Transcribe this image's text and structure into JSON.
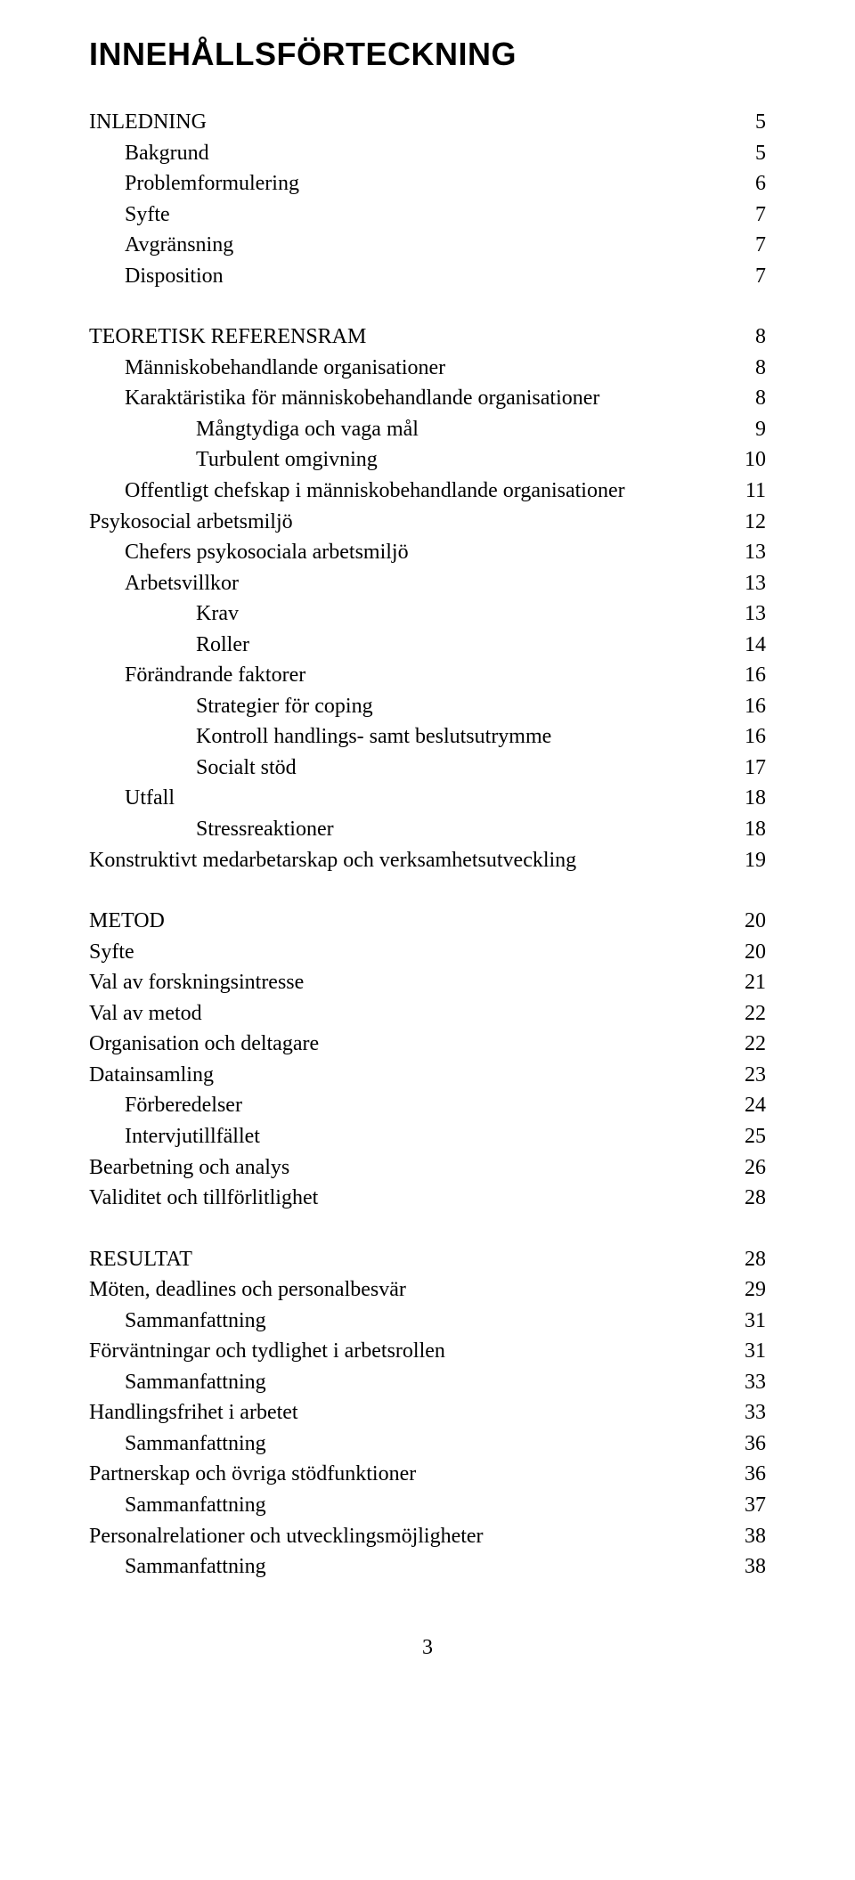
{
  "title": "INNEHÅLLSFÖRTECKNING",
  "footer_page": "3",
  "sections": [
    {
      "entries": [
        {
          "label": "INLEDNING",
          "page": "5",
          "indent": 0
        },
        {
          "label": "Bakgrund",
          "page": "5",
          "indent": 1
        },
        {
          "label": "Problemformulering",
          "page": "6",
          "indent": 1
        },
        {
          "label": "Syfte",
          "page": "7",
          "indent": 1
        },
        {
          "label": "Avgränsning",
          "page": "7",
          "indent": 1
        },
        {
          "label": "Disposition",
          "page": "7",
          "indent": 1
        }
      ]
    },
    {
      "entries": [
        {
          "label": "TEORETISK REFERENSRAM",
          "page": "8",
          "indent": 0
        },
        {
          "label": "Människobehandlande organisationer",
          "page": "8",
          "indent": 1
        },
        {
          "label": "Karaktäristika för människobehandlande organisationer",
          "page": "8",
          "indent": 1
        },
        {
          "label": "Mångtydiga och vaga mål",
          "page": "9",
          "indent": 2
        },
        {
          "label": "Turbulent omgivning",
          "page": "10",
          "indent": 2
        },
        {
          "label": "Offentligt chefskap i människobehandlande organisationer",
          "page": "11",
          "indent": 1
        },
        {
          "label": "Psykosocial arbetsmiljö",
          "page": "12",
          "indent": 0
        },
        {
          "label": "Chefers psykosociala arbetsmiljö",
          "page": "13",
          "indent": 1
        },
        {
          "label": "Arbetsvillkor",
          "page": "13",
          "indent": 1
        },
        {
          "label": "Krav",
          "page": "13",
          "indent": 2
        },
        {
          "label": "Roller",
          "page": "14",
          "indent": 2
        },
        {
          "label": "Förändrande faktorer",
          "page": "16",
          "indent": 1
        },
        {
          "label": "Strategier för coping",
          "page": "16",
          "indent": 2
        },
        {
          "label": "Kontroll handlings- samt beslutsutrymme",
          "page": "16",
          "indent": 2
        },
        {
          "label": "Socialt stöd",
          "page": "17",
          "indent": 2
        },
        {
          "label": "Utfall",
          "page": "18",
          "indent": 1
        },
        {
          "label": "Stressreaktioner",
          "page": "18",
          "indent": 2
        },
        {
          "label": "Konstruktivt medarbetarskap och verksamhetsutveckling",
          "page": "19",
          "indent": 0
        }
      ]
    },
    {
      "entries": [
        {
          "label": "METOD",
          "page": "20",
          "indent": 0
        },
        {
          "label": "Syfte",
          "page": "20",
          "indent": 0
        },
        {
          "label": "Val av forskningsintresse",
          "page": "21",
          "indent": 0
        },
        {
          "label": "Val av metod",
          "page": "22",
          "indent": 0
        },
        {
          "label": "Organisation och deltagare",
          "page": "22",
          "indent": 0
        },
        {
          "label": "Datainsamling",
          "page": "23",
          "indent": 0
        },
        {
          "label": "Förberedelser",
          "page": "24",
          "indent": 1
        },
        {
          "label": "Intervjutillfället",
          "page": "25",
          "indent": 1
        },
        {
          "label": "Bearbetning och analys",
          "page": "26",
          "indent": 0
        },
        {
          "label": "Validitet och tillförlitlighet",
          "page": "28",
          "indent": 0
        }
      ]
    },
    {
      "entries": [
        {
          "label": "RESULTAT",
          "page": "28",
          "indent": 0
        },
        {
          "label": "Möten, deadlines och personalbesvär",
          "page": "29",
          "indent": 0
        },
        {
          "label": "Sammanfattning",
          "page": "31",
          "indent": 1
        },
        {
          "label": "Förväntningar och tydlighet i arbetsrollen",
          "page": "31",
          "indent": 0
        },
        {
          "label": "Sammanfattning",
          "page": "33",
          "indent": 1
        },
        {
          "label": "Handlingsfrihet i arbetet",
          "page": "33",
          "indent": 0
        },
        {
          "label": "Sammanfattning",
          "page": "36",
          "indent": 1
        },
        {
          "label": "Partnerskap och övriga stödfunktioner",
          "page": "36",
          "indent": 0
        },
        {
          "label": "Sammanfattning",
          "page": "37",
          "indent": 1
        },
        {
          "label": "Personalrelationer och utvecklingsmöjligheter",
          "page": "38",
          "indent": 0
        },
        {
          "label": "Sammanfattning",
          "page": "38",
          "indent": 1
        }
      ]
    }
  ]
}
